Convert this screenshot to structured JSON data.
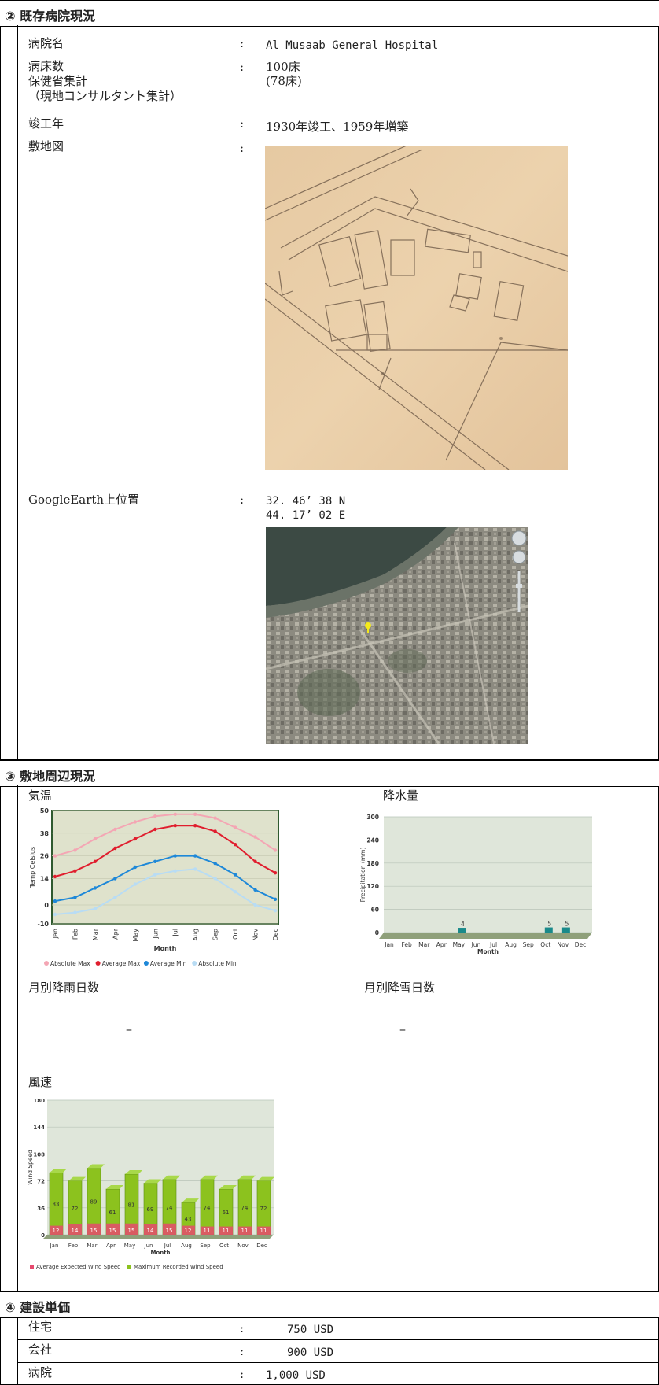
{
  "section2": {
    "title": "② 既存病院現況",
    "rows": {
      "name_label": "病院名",
      "name_value": "Al Musaab General Hospital",
      "beds_label_1": "病床数",
      "beds_label_2": "保健省集計",
      "beds_label_3": "（現地コンサルタント集計）",
      "beds_value_1": "100床",
      "beds_value_2": "(78床)",
      "year_label": "竣工年",
      "year_value": "1930年竣工、1959年増築",
      "map_label": "敷地図",
      "ge_label": "GoogleEarth上位置",
      "ge_lat": "32. 46’ 38 N",
      "ge_lon": "44. 17’ 02 E"
    },
    "colon": ":"
  },
  "section3": {
    "title": "③ 敷地周辺現況",
    "temp_label": "気温",
    "precip_label": "降水量",
    "rain_days_label": "月別降雨日数",
    "rain_days_value": "–",
    "snow_days_label": "月別降雪日数",
    "snow_days_value": "–",
    "wind_label": "風速"
  },
  "section4": {
    "title": "④ 建設単価",
    "rows": [
      {
        "label": "住宅",
        "value": "750 USD"
      },
      {
        "label": "会社",
        "value": "900 USD"
      },
      {
        "label": "病院",
        "value": "1,000 USD"
      }
    ]
  },
  "chart_data": [
    {
      "type": "line",
      "categories": [
        "Jan",
        "Feb",
        "Mar",
        "Apr",
        "May",
        "Jun",
        "Jul",
        "Aug",
        "Sep",
        "Oct",
        "Nov",
        "Dec"
      ],
      "ylabel": "Temp Celsius",
      "xlabel": "Month",
      "ylim": [
        -10,
        50
      ],
      "yticks": [
        -10,
        0,
        14,
        26,
        38,
        50
      ],
      "series": [
        {
          "name": "Absolute Max",
          "color": "#f4a6b4",
          "values": [
            26,
            29,
            35,
            40,
            44,
            47,
            48,
            48,
            46,
            41,
            36,
            29
          ]
        },
        {
          "name": "Average Max",
          "color": "#e01e2e",
          "values": [
            15,
            18,
            23,
            30,
            35,
            40,
            42,
            42,
            39,
            32,
            23,
            17
          ]
        },
        {
          "name": "Average Min",
          "color": "#1e88d8",
          "values": [
            2,
            4,
            9,
            14,
            20,
            23,
            26,
            26,
            22,
            16,
            8,
            3
          ]
        },
        {
          "name": "Absolute Min",
          "color": "#b8dcf4",
          "values": [
            -5,
            -4,
            -2,
            4,
            11,
            16,
            18,
            19,
            14,
            7,
            0,
            -3
          ]
        }
      ]
    },
    {
      "type": "bar",
      "categories": [
        "Jan",
        "Feb",
        "Mar",
        "Apr",
        "May",
        "Jun",
        "Jul",
        "Aug",
        "Sep",
        "Oct",
        "Nov",
        "Dec"
      ],
      "ylabel": "Precipitation (mm)",
      "xlabel": "Month",
      "ylim": [
        0,
        300
      ],
      "yticks": [
        0,
        60,
        120,
        180,
        240,
        300
      ],
      "values": [
        0,
        0,
        0,
        0,
        4,
        0,
        0,
        0,
        0,
        5,
        5,
        0
      ],
      "labels": {
        "May": "4",
        "Oct": "5",
        "Nov": "5"
      },
      "color": "#1a8a8a"
    },
    {
      "type": "bar",
      "categories": [
        "Jan",
        "Feb",
        "Mar",
        "Apr",
        "May",
        "Jun",
        "Jul",
        "Aug",
        "Sep",
        "Oct",
        "Nov",
        "Dec"
      ],
      "ylabel": "Wind Speed",
      "xlabel": "Month",
      "ylim": [
        0,
        180
      ],
      "yticks": [
        0,
        36,
        72,
        108,
        144,
        180
      ],
      "series": [
        {
          "name": "Average Expected Wind Speed",
          "color": "#e64a6e",
          "values": [
            12,
            14,
            15,
            15,
            15,
            14,
            15,
            12,
            11,
            11,
            11,
            11
          ]
        },
        {
          "name": "Maximum Recorded Wind Speed",
          "color": "#8cc21e",
          "values": [
            83,
            72,
            89,
            61,
            81,
            69,
            74,
            43,
            74,
            61,
            74,
            72
          ]
        }
      ]
    }
  ]
}
